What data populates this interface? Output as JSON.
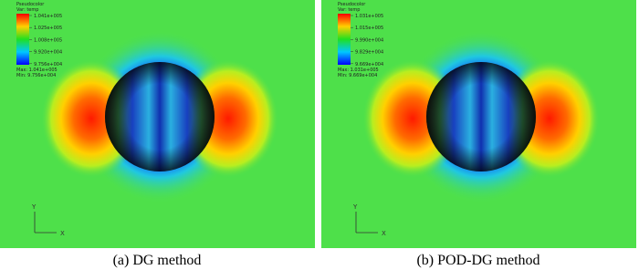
{
  "panels": [
    {
      "legend": {
        "title": "Pseudocolor",
        "variable": "Var: temp",
        "labels": [
          "1.041e+005",
          "1.025e+005",
          "1.008e+005",
          "9.920e+004",
          "9.756e+004"
        ],
        "max": "Max: 1.041e+005",
        "min": "Min: 9.756e+004"
      },
      "axes": {
        "x": "X",
        "y": "Y"
      },
      "caption": "(a) DG method"
    },
    {
      "legend": {
        "title": "Pseudocolor",
        "variable": "Var: temp",
        "labels": [
          "1.031e+005",
          "1.015e+005",
          "9.990e+004",
          "9.829e+004",
          "9.669e+004"
        ],
        "max": "Max: 1.031e+005",
        "min": "Min: 9.669e+004"
      },
      "axes": {
        "x": "X",
        "y": "Y"
      },
      "caption": "(b) POD-DG method"
    }
  ]
}
